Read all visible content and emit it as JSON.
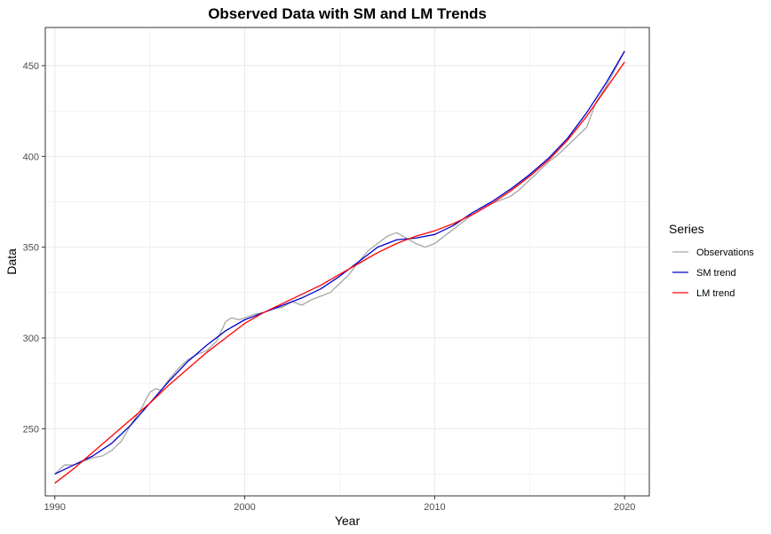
{
  "chart_data": {
    "type": "line",
    "title": "Observed Data with SM and LM Trends",
    "xlabel": "Year",
    "ylabel": "Data",
    "xlim": [
      1989.5,
      2021.3
    ],
    "ylim": [
      213,
      471
    ],
    "x_ticks": [
      1990,
      2000,
      2010,
      2020
    ],
    "x_tick_labels": [
      "1990",
      "2000",
      "2010",
      "2020"
    ],
    "y_ticks": [
      250,
      300,
      350,
      400,
      450
    ],
    "y_tick_labels": [
      "250",
      "300",
      "350",
      "400",
      "450"
    ],
    "grid": true,
    "legend": {
      "title": "Series",
      "placement": "right"
    },
    "series": [
      {
        "name": "Observations",
        "color": "#a6a6a6",
        "x": [
          1990.0,
          1990.5,
          1991.0,
          1991.5,
          1992.0,
          1992.5,
          1993.0,
          1993.5,
          1994.0,
          1994.5,
          1995.0,
          1995.3,
          1995.6,
          1996.0,
          1996.5,
          1997.0,
          1997.5,
          1998.0,
          1998.5,
          1999.0,
          1999.3,
          1999.7,
          2000.0,
          2000.5,
          2001.0,
          2001.5,
          2002.0,
          2002.5,
          2003.0,
          2003.5,
          2004.0,
          2004.5,
          2005.0,
          2005.5,
          2006.0,
          2006.5,
          2007.0,
          2007.5,
          2008.0,
          2008.5,
          2009.0,
          2009.5,
          2010.0,
          2010.5,
          2011.0,
          2011.5,
          2012.0,
          2012.5,
          2013.0,
          2013.5,
          2014.0,
          2014.5,
          2015.0,
          2015.5,
          2016.0,
          2016.5,
          2017.0,
          2017.5,
          2018.0,
          2018.5,
          2019.0,
          2019.5,
          2020.0
        ],
        "values": [
          225,
          230,
          230,
          232,
          234,
          235,
          238,
          243,
          252,
          260,
          270,
          272,
          271,
          277,
          283,
          288,
          291,
          293,
          298,
          309,
          311,
          310,
          311,
          313,
          314,
          316,
          317,
          320,
          318,
          321,
          323,
          325,
          330,
          335,
          342,
          348,
          352,
          356,
          358,
          355,
          352,
          350,
          352,
          356,
          360,
          364,
          368,
          371,
          374,
          376,
          378,
          382,
          387,
          392,
          397,
          401,
          406,
          411,
          416,
          430,
          438,
          448,
          458
        ]
      },
      {
        "name": "SM trend",
        "color": "#0000cc",
        "x": [
          1990,
          1991,
          1992,
          1993,
          1994,
          1995,
          1996,
          1997,
          1998,
          1999,
          2000,
          2001,
          2002,
          2003,
          2004,
          2005,
          2006,
          2007,
          2008,
          2009,
          2010,
          2011,
          2012,
          2013,
          2014,
          2015,
          2016,
          2017,
          2018,
          2019,
          2020
        ],
        "values": [
          225,
          230,
          235,
          242,
          252,
          264,
          276,
          287,
          296,
          304,
          310,
          314,
          318,
          322,
          327,
          334,
          342,
          350,
          354,
          355,
          357,
          362,
          369,
          375,
          382,
          390,
          399,
          410,
          424,
          440,
          458
        ]
      },
      {
        "name": "LM trend",
        "color": "#ff0000",
        "x": [
          1990,
          1991,
          1992,
          1993,
          1994,
          1995,
          1996,
          1997,
          1998,
          1999,
          2000,
          2001,
          2002,
          2003,
          2004,
          2005,
          2006,
          2007,
          2008,
          2009,
          2010,
          2011,
          2012,
          2013,
          2014,
          2015,
          2016,
          2017,
          2018,
          2019,
          2020
        ],
        "values": [
          220,
          228,
          237,
          246,
          255,
          264,
          274,
          283,
          292,
          300,
          308,
          314,
          319,
          324,
          329,
          335,
          341,
          347,
          352,
          356,
          359,
          363,
          368,
          374,
          381,
          389,
          398,
          409,
          422,
          437,
          452
        ]
      }
    ]
  }
}
